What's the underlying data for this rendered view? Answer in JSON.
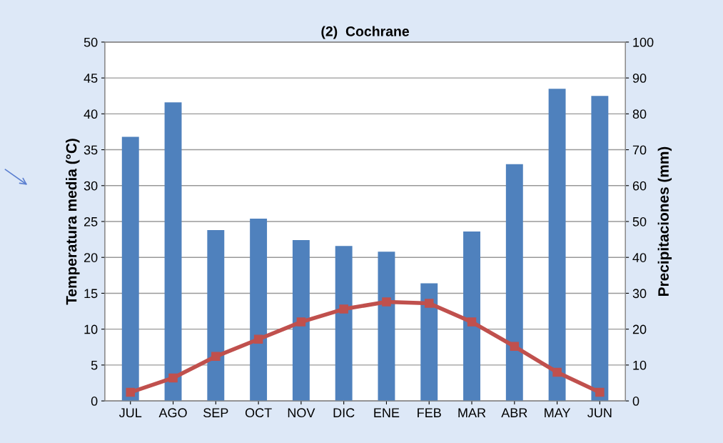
{
  "chart_data": {
    "type": "bar",
    "title": "(2)  Cochrane",
    "categories": [
      "JUL",
      "AGO",
      "SEP",
      "OCT",
      "NOV",
      "DIC",
      "ENE",
      "FEB",
      "MAR",
      "ABR",
      "MAY",
      "JUN"
    ],
    "series": [
      {
        "axis": "y2",
        "color": "#4f81bd",
        "values": [
          73.6,
          83.2,
          47.6,
          50.8,
          44.8,
          43.2,
          41.6,
          32.8,
          47.2,
          66,
          87,
          85
        ]
      },
      {
        "type": "line",
        "axis": "y",
        "color": "#c0504d",
        "marker": "square",
        "values": [
          1.2,
          3.2,
          6.2,
          8.6,
          11,
          12.8,
          13.8,
          13.6,
          11,
          7.6,
          4,
          1.2
        ]
      }
    ],
    "ylabel": "Temperatura media (°C)",
    "y2label": "Precipitaciones (mm)",
    "ylim": [
      0,
      50
    ],
    "yticks": [
      0,
      5,
      10,
      15,
      20,
      25,
      30,
      35,
      40,
      45,
      50
    ],
    "y2lim": [
      0,
      100
    ],
    "y2ticks": [
      0,
      10,
      20,
      30,
      40,
      50,
      60,
      70,
      80,
      90,
      100
    ],
    "grid": "y"
  }
}
